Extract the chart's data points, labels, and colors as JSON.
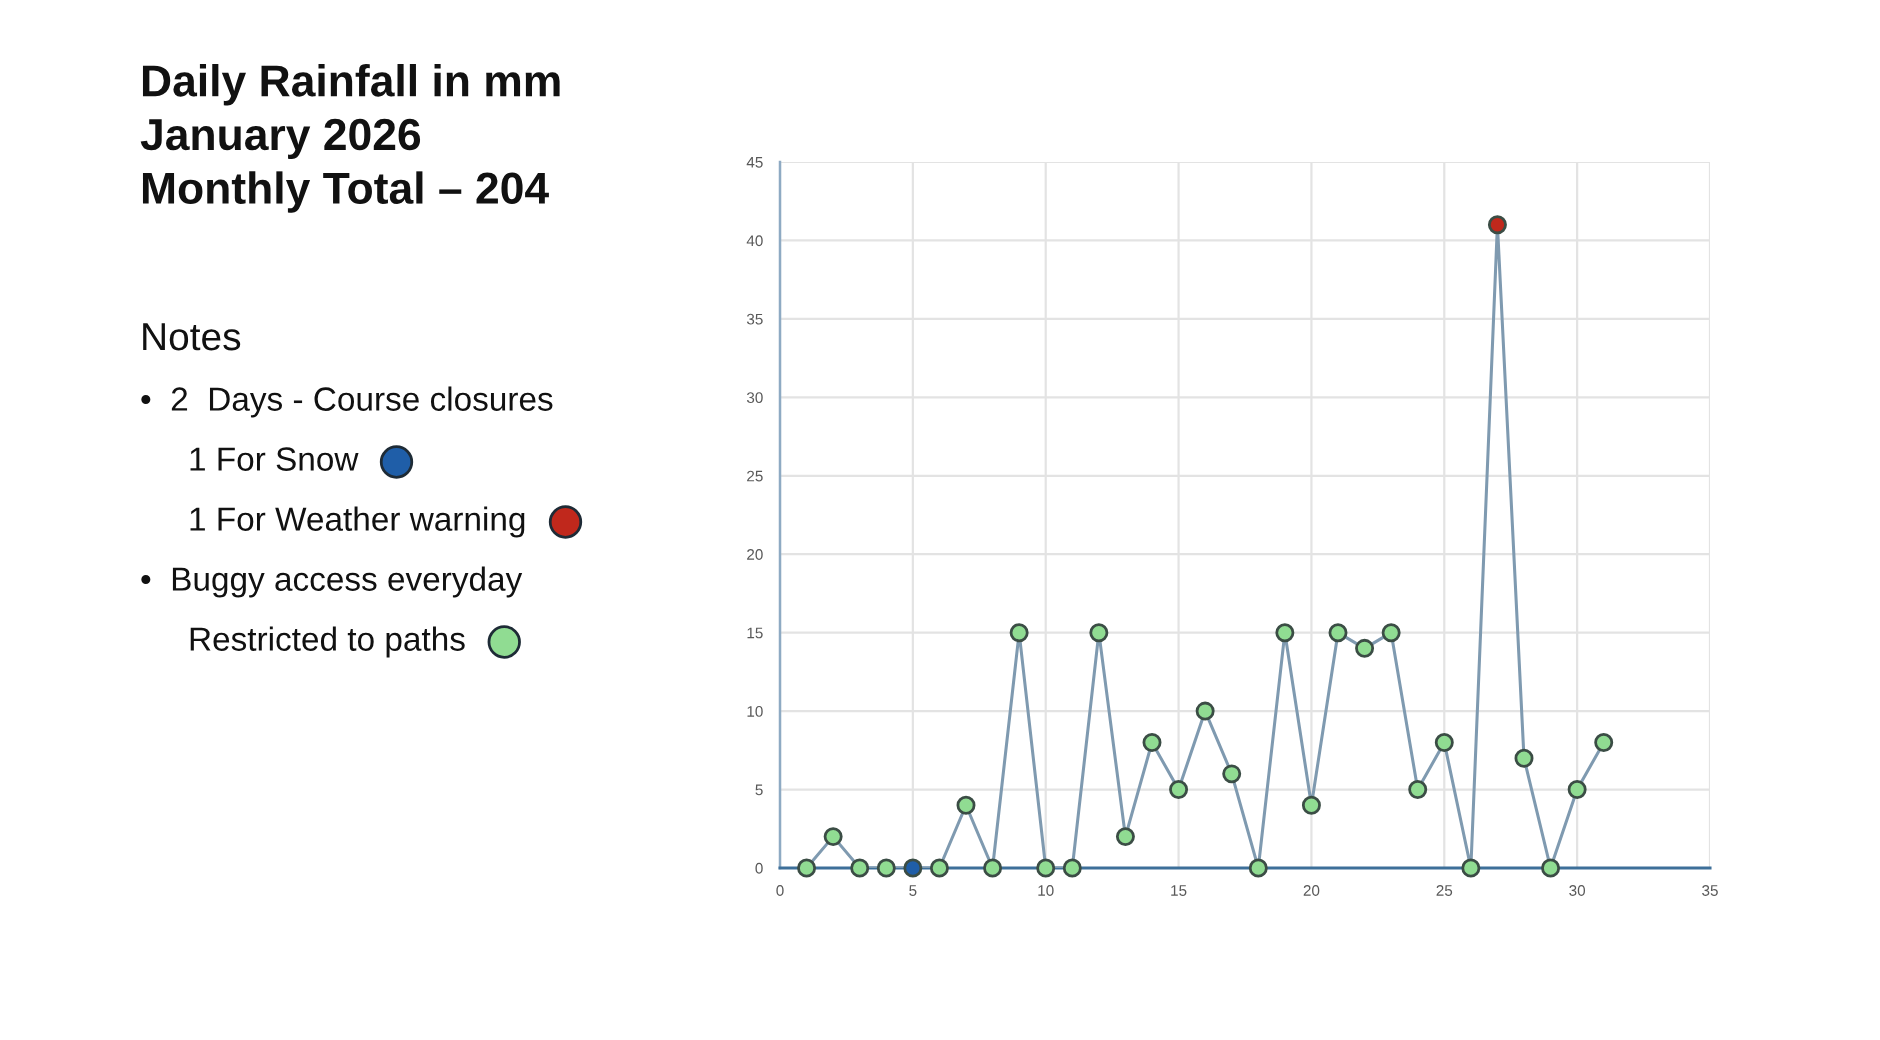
{
  "chart_data": {
    "type": "line",
    "title": "Daily Rainfall in mm\nJanuary 2026\nMonthly Total – 204",
    "annotations": [
      "Notes",
      "•  2  Days - Course closures",
      "•  Buggy access everyday"
    ],
    "x": [
      1,
      2,
      3,
      4,
      5,
      6,
      7,
      8,
      9,
      10,
      11,
      12,
      13,
      14,
      15,
      16,
      17,
      18,
      19,
      20,
      21,
      22,
      23,
      24,
      25,
      26,
      27,
      28,
      29,
      30,
      31
    ],
    "series": [
      {
        "color": "#7f9ab0",
        "marker": "none",
        "values": [
          0,
          2,
          0,
          0,
          0,
          0,
          4,
          0,
          15,
          0,
          0,
          15,
          2,
          8,
          5,
          10,
          6,
          0,
          15,
          4,
          15,
          14,
          15,
          5,
          8,
          0,
          41,
          7,
          0,
          5,
          8
        ]
      },
      {
        "type": "scatter",
        "name": "1 For Snow",
        "color": "#1f5ea8",
        "x": [
          5
        ],
        "values": [
          0
        ]
      },
      {
        "type": "scatter",
        "name": "1 For Weather warning",
        "color": "#c0281c",
        "x": [
          27
        ],
        "values": [
          41
        ]
      },
      {
        "type": "scatter",
        "name": "Restricted to paths",
        "color": "#90dc92",
        "x": [
          1,
          2,
          3,
          4,
          6,
          7,
          8,
          9,
          10,
          11,
          12,
          13,
          14,
          15,
          16,
          17,
          18,
          19,
          20,
          21,
          22,
          23,
          24,
          25,
          26,
          28,
          29,
          30,
          31
        ],
        "values": [
          0,
          2,
          0,
          0,
          0,
          4,
          0,
          15,
          0,
          0,
          15,
          2,
          8,
          5,
          10,
          6,
          0,
          15,
          4,
          15,
          14,
          15,
          5,
          8,
          0,
          7,
          0,
          5,
          8
        ]
      }
    ],
    "xlim": [
      0,
      35
    ],
    "xticks": [
      0,
      5,
      10,
      15,
      20,
      25,
      30,
      35
    ],
    "ylim": [
      0,
      45
    ],
    "yticks": [
      0,
      5,
      10,
      15,
      20,
      25,
      30,
      35,
      40,
      45
    ],
    "grid": true,
    "legend": "left",
    "marker": "circle",
    "line_style": "solid"
  }
}
